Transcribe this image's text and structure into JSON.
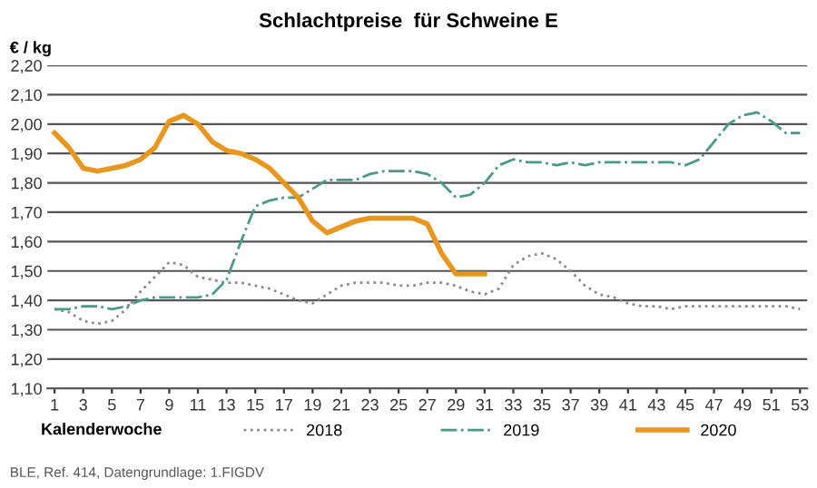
{
  "chart_data": {
    "type": "line",
    "title": "Schlachtpreise  für Schweine E",
    "ylabel": "€ / kg",
    "xlabel": "Kalenderwoche",
    "annotations": [
      "BLE, Ref. 414, Datengrundlage: 1.FIGDV"
    ],
    "x": [
      1,
      2,
      3,
      4,
      5,
      6,
      7,
      8,
      9,
      10,
      11,
      12,
      13,
      14,
      15,
      16,
      17,
      18,
      19,
      20,
      21,
      22,
      23,
      24,
      25,
      26,
      27,
      28,
      29,
      30,
      31,
      32,
      33,
      34,
      35,
      36,
      37,
      38,
      39,
      40,
      41,
      42,
      43,
      44,
      45,
      46,
      47,
      48,
      49,
      50,
      51,
      52,
      53
    ],
    "series": [
      {
        "name": "2018",
        "color": "#8c8c8c",
        "line_style": "dotted",
        "values": [
          1.37,
          1.36,
          1.33,
          1.32,
          1.33,
          1.37,
          1.43,
          1.48,
          1.53,
          1.52,
          1.48,
          1.47,
          1.46,
          1.46,
          1.45,
          1.44,
          1.42,
          1.4,
          1.39,
          1.42,
          1.45,
          1.46,
          1.46,
          1.46,
          1.45,
          1.45,
          1.46,
          1.46,
          1.45,
          1.43,
          1.42,
          1.44,
          1.52,
          1.55,
          1.56,
          1.54,
          1.5,
          1.45,
          1.42,
          1.41,
          1.39,
          1.38,
          1.38,
          1.37,
          1.38,
          1.38,
          1.38,
          1.38,
          1.38,
          1.38,
          1.38,
          1.38,
          1.37
        ]
      },
      {
        "name": "2019",
        "color": "#4a9a8a",
        "line_style": "dashdot",
        "values": [
          1.37,
          1.37,
          1.38,
          1.38,
          1.37,
          1.38,
          1.4,
          1.41,
          1.41,
          1.41,
          1.41,
          1.42,
          1.47,
          1.6,
          1.72,
          1.74,
          1.75,
          1.75,
          1.78,
          1.81,
          1.81,
          1.81,
          1.83,
          1.84,
          1.84,
          1.84,
          1.83,
          1.8,
          1.75,
          1.76,
          1.8,
          1.86,
          1.88,
          1.87,
          1.87,
          1.86,
          1.87,
          1.86,
          1.87,
          1.87,
          1.87,
          1.87,
          1.87,
          1.87,
          1.86,
          1.88,
          1.94,
          2.0,
          2.03,
          2.04,
          2.01,
          1.97,
          1.97
        ]
      },
      {
        "name": "2020",
        "color": "#e8961e",
        "line_style": "solid",
        "values": [
          1.97,
          1.92,
          1.85,
          1.84,
          1.85,
          1.86,
          1.88,
          1.92,
          2.01,
          2.03,
          2.0,
          1.94,
          1.91,
          1.9,
          1.88,
          1.85,
          1.8,
          1.75,
          1.67,
          1.63,
          1.65,
          1.67,
          1.68,
          1.68,
          1.68,
          1.68,
          1.66,
          1.56,
          1.49,
          1.49,
          1.49,
          null,
          null,
          null,
          null,
          null,
          null,
          null,
          null,
          null,
          null,
          null,
          null,
          null,
          null,
          null,
          null,
          null,
          null,
          null,
          null,
          null,
          null
        ]
      }
    ],
    "xlim": [
      0.5,
      53.5
    ],
    "xticks": [
      1,
      3,
      5,
      7,
      9,
      11,
      13,
      15,
      17,
      19,
      21,
      23,
      25,
      27,
      29,
      31,
      33,
      35,
      37,
      39,
      41,
      43,
      45,
      47,
      49,
      51,
      53
    ],
    "ylim": [
      1.1,
      2.2
    ],
    "yticks": [
      {
        "value": 1.1,
        "label": "1,10"
      },
      {
        "value": 1.2,
        "label": "1,20"
      },
      {
        "value": 1.3,
        "label": "1,30"
      },
      {
        "value": 1.4,
        "label": "1,40"
      },
      {
        "value": 1.5,
        "label": "1,50"
      },
      {
        "value": 1.6,
        "label": "1,60"
      },
      {
        "value": 1.7,
        "label": "1,70"
      },
      {
        "value": 1.8,
        "label": "1,80"
      },
      {
        "value": 1.9,
        "label": "1,90"
      },
      {
        "value": 2.0,
        "label": "2,00"
      },
      {
        "value": 2.1,
        "label": "2,10"
      },
      {
        "value": 2.2,
        "label": "2,20"
      }
    ],
    "grid": "y",
    "legend": "bottom"
  }
}
